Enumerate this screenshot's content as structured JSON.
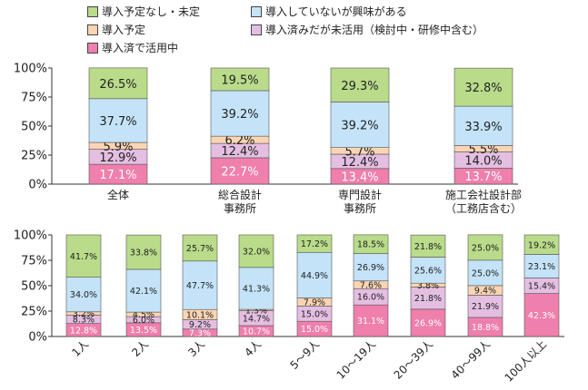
{
  "colors": {
    "active": "#ef7fac",
    "underused": "#e4bfe2",
    "planned": "#fbd5b3",
    "interested": "#c4e3f8",
    "undecided": "#b9db8a"
  },
  "legend": [
    {
      "key": "undecided",
      "label": "導入予定なし・未定"
    },
    {
      "key": "interested",
      "label": "導入していないが興味がある"
    },
    {
      "key": "planned",
      "label": "導入予定"
    },
    {
      "key": "underused",
      "label": "導入済みだが未活用（検討中・研修中含む）"
    },
    {
      "key": "active",
      "label": "導入済で活用中"
    }
  ],
  "chart_data": [
    {
      "type": "bar",
      "stacked": true,
      "ylim": [
        0,
        100
      ],
      "yticks": [
        "0%",
        "25%",
        "50%",
        "75%",
        "100%"
      ],
      "categories": [
        "全体",
        "総合設計\n事務所",
        "専門設計\n事務所",
        "施工会社設計部\n（工務店含む）"
      ],
      "series": [
        {
          "key": "active",
          "name": "導入済で活用中",
          "values": [
            17.1,
            22.7,
            13.4,
            13.7
          ],
          "labels": [
            "17.1%",
            "22.7%",
            "13.4%",
            "13.7%"
          ]
        },
        {
          "key": "underused",
          "name": "導入済みだが未活用（検討中・研修中含む）",
          "values": [
            12.9,
            12.4,
            12.4,
            14.0
          ],
          "labels": [
            "12.9%",
            "12.4%",
            "12.4%",
            "14.0%"
          ]
        },
        {
          "key": "planned",
          "name": "導入予定",
          "values": [
            5.9,
            6.2,
            5.7,
            5.5
          ],
          "labels": [
            "5.9%",
            "6.2%",
            "5.7%",
            "5.5%"
          ]
        },
        {
          "key": "interested",
          "name": "導入していないが興味がある",
          "values": [
            37.7,
            39.2,
            39.2,
            33.9
          ],
          "labels": [
            "37.7%",
            "39.2%",
            "39.2%",
            "33.9%"
          ]
        },
        {
          "key": "undecided",
          "name": "導入予定なし・未定",
          "values": [
            26.5,
            19.5,
            29.3,
            32.8
          ],
          "labels": [
            "26.5%",
            "19.5%",
            "29.3%",
            "32.8%"
          ]
        }
      ]
    },
    {
      "type": "bar",
      "stacked": true,
      "ylim": [
        0,
        100
      ],
      "yticks": [
        "0%",
        "25%",
        "50%",
        "75%",
        "100%"
      ],
      "categories": [
        "1人",
        "2人",
        "3人",
        "4人",
        "5〜9人",
        "10〜19人",
        "20〜39人",
        "40〜99人",
        "100人以上"
      ],
      "series": [
        {
          "key": "active",
          "name": "導入済で活用中",
          "values": [
            12.8,
            13.5,
            7.3,
            10.7,
            15.0,
            31.1,
            26.9,
            18.8,
            42.3
          ],
          "labels": [
            "12.8%",
            "13.5%",
            "7.3%",
            "10.7%",
            "15.0%",
            "31.1%",
            "26.9%",
            "18.8%",
            "42.3%"
          ]
        },
        {
          "key": "underused",
          "name": "導入済みだが未活用（検討中・研修中含む）",
          "values": [
            8.3,
            6.0,
            9.2,
            14.7,
            15.0,
            16.0,
            21.8,
            21.9,
            15.4
          ],
          "labels": [
            "8.3%",
            "6.0%",
            "9.2%",
            "14.7%",
            "15.0%",
            "16.0%",
            "21.8%",
            "21.9%",
            "15.4%"
          ]
        },
        {
          "key": "planned",
          "name": "導入予定",
          "values": [
            3.2,
            4.5,
            10.1,
            1.3,
            7.9,
            7.6,
            3.8,
            9.4,
            0
          ],
          "labels": [
            "3.2%",
            "4.5%",
            "10.1%",
            "1.3%",
            "7.9%",
            "7.6%",
            "3.8%",
            "9.4%",
            ""
          ]
        },
        {
          "key": "interested",
          "name": "導入していないが興味がある",
          "values": [
            34.0,
            42.1,
            47.7,
            41.3,
            44.9,
            26.9,
            25.6,
            25.0,
            23.1
          ],
          "labels": [
            "34.0%",
            "42.1%",
            "47.7%",
            "41.3%",
            "44.9%",
            "26.9%",
            "25.6%",
            "25.0%",
            "23.1%"
          ]
        },
        {
          "key": "undecided",
          "name": "導入予定なし・未定",
          "values": [
            41.7,
            33.8,
            25.7,
            32.0,
            17.2,
            18.5,
            21.8,
            25.0,
            19.2
          ],
          "labels": [
            "41.7%",
            "33.8%",
            "25.7%",
            "32.0%",
            "17.2%",
            "18.5%",
            "21.8%",
            "25.0%",
            "19.2%"
          ]
        }
      ]
    }
  ]
}
